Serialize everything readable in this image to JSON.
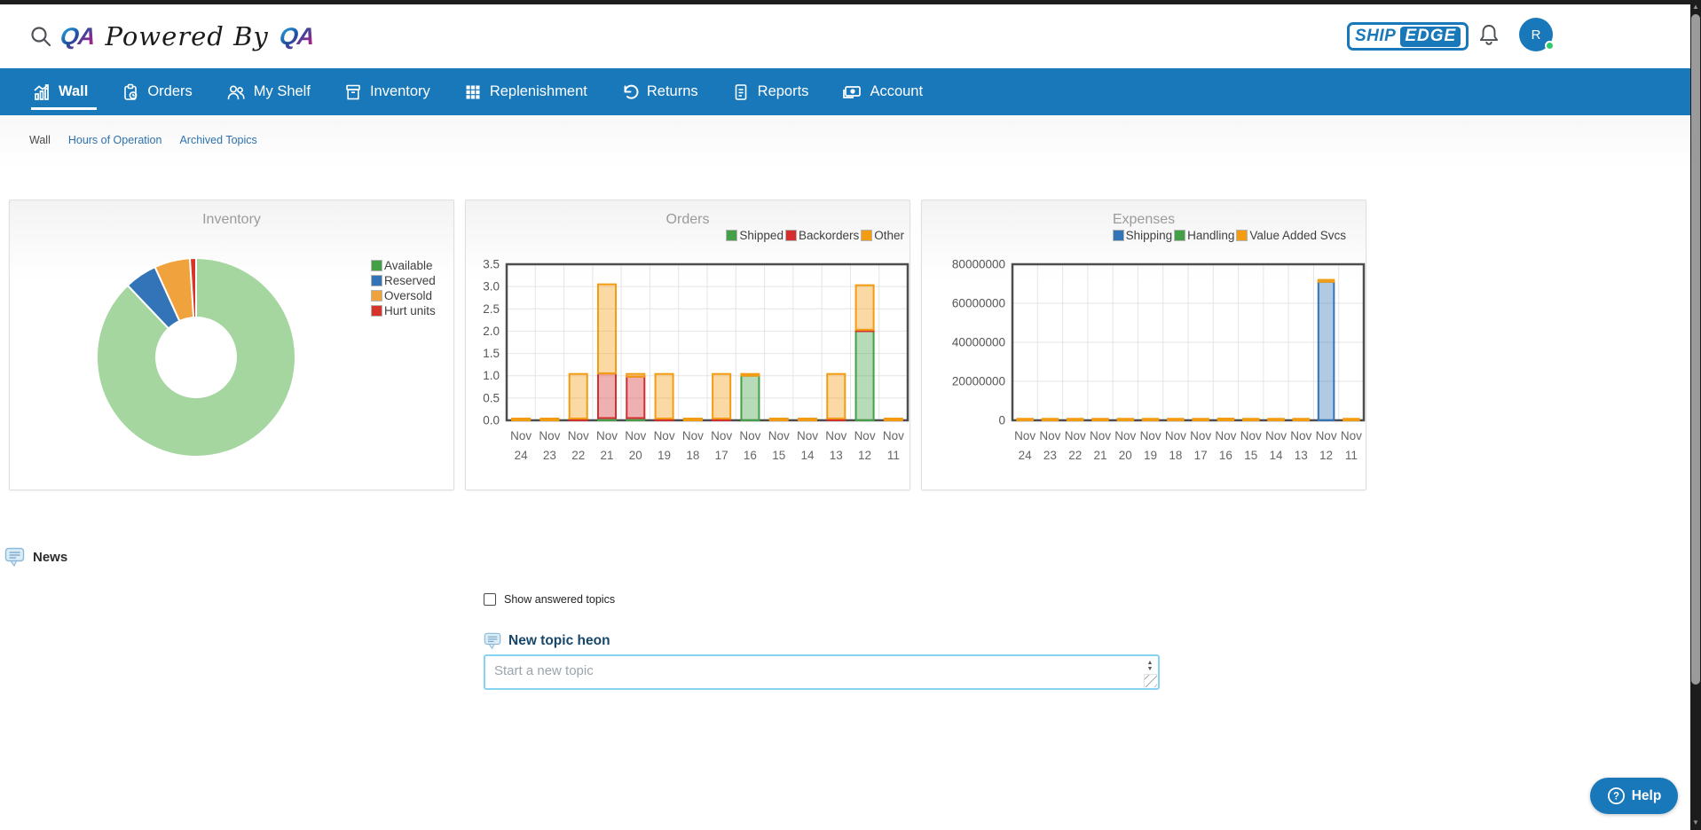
{
  "header": {
    "qa_logo_text": "QA",
    "powered_by": "Powered By",
    "shipedge_ship": "SHIP",
    "shipedge_edge": "EDGE",
    "avatar_initial": "R"
  },
  "nav": {
    "items": [
      {
        "label": "Wall",
        "active": true
      },
      {
        "label": "Orders",
        "active": false
      },
      {
        "label": "My Shelf",
        "active": false
      },
      {
        "label": "Inventory",
        "active": false
      },
      {
        "label": "Replenishment",
        "active": false
      },
      {
        "label": "Returns",
        "active": false
      },
      {
        "label": "Reports",
        "active": false
      },
      {
        "label": "Account",
        "active": false
      }
    ]
  },
  "breadcrumb": {
    "items": [
      "Wall",
      "Hours of Operation",
      "Archived Topics"
    ]
  },
  "news": {
    "title": "News",
    "show_answered_label": "Show answered topics",
    "new_topic_title": "New topic heon",
    "new_topic_placeholder": "Start a new topic"
  },
  "help": {
    "label": "Help"
  },
  "colors": {
    "brand_blue": "#1878b9",
    "green": "#43A047",
    "red": "#D32F2F",
    "orange": "#F39C12",
    "blue_series": "#3274B7",
    "grid": "#e4e4e4",
    "frame": "#4d4d4d"
  },
  "chart_data": [
    {
      "type": "pie",
      "title": "Inventory",
      "donut": true,
      "labels": [
        "Available",
        "Reserved",
        "Oversold",
        "Hurt units"
      ],
      "values": [
        87.9,
        5.3,
        5.8,
        1.0
      ],
      "slice_colors": [
        "#A5D6A0",
        "#3274B7",
        "#F0A33C",
        "#D7342A"
      ],
      "legend_colors": [
        "#43A047",
        "#3274B7",
        "#F0A33C",
        "#D7342A"
      ],
      "legend_position": "right"
    },
    {
      "type": "bar",
      "title": "Orders",
      "stacked": true,
      "grid": true,
      "legend_position": "top-right",
      "categories": [
        "Nov 24",
        "Nov 23",
        "Nov 22",
        "Nov 21",
        "Nov 20",
        "Nov 19",
        "Nov 18",
        "Nov 17",
        "Nov 16",
        "Nov 15",
        "Nov 14",
        "Nov 13",
        "Nov 12",
        "Nov 11"
      ],
      "series": [
        {
          "name": "Shipped",
          "color": "#43A047",
          "values": [
            0,
            0,
            0,
            0.05,
            0.05,
            0,
            0,
            0,
            1,
            0,
            0,
            0,
            2,
            0
          ]
        },
        {
          "name": "Backorders",
          "color": "#D32F2F",
          "values": [
            0,
            0,
            0.04,
            1,
            0.93,
            0.04,
            0,
            0.04,
            0,
            0,
            0,
            0.04,
            0.03,
            0
          ]
        },
        {
          "name": "Other",
          "color": "#F39C12",
          "values": [
            0.04,
            0.04,
            1,
            2,
            0.06,
            1,
            0.04,
            1,
            0.04,
            0.04,
            0.04,
            1,
            1,
            0.04
          ]
        }
      ],
      "ylim": [
        0,
        3.5
      ],
      "ytick_step": 0.5,
      "ytick_format": "decimal1"
    },
    {
      "type": "bar",
      "title": "Expenses",
      "stacked": true,
      "grid": true,
      "legend_position": "top-right",
      "categories": [
        "Nov 24",
        "Nov 23",
        "Nov 22",
        "Nov 21",
        "Nov 20",
        "Nov 19",
        "Nov 18",
        "Nov 17",
        "Nov 16",
        "Nov 15",
        "Nov 14",
        "Nov 13",
        "Nov 12",
        "Nov 11"
      ],
      "series": [
        {
          "name": "Shipping",
          "color": "#3274B7",
          "values": [
            0,
            0,
            0,
            0,
            0,
            0,
            0,
            0,
            0,
            0,
            0,
            0,
            71000000,
            0
          ]
        },
        {
          "name": "Handling",
          "color": "#43A047",
          "values": [
            0,
            0,
            0,
            0,
            0,
            0,
            0,
            0,
            0,
            0,
            0,
            0,
            0,
            0
          ]
        },
        {
          "name": "Value Added Svcs",
          "color": "#F39C12",
          "values": [
            800000,
            800000,
            800000,
            800000,
            800000,
            800000,
            800000,
            800000,
            900000,
            800000,
            800000,
            800000,
            1000000,
            800000
          ]
        }
      ],
      "ylim": [
        0,
        80000000
      ],
      "ytick_step": 20000000,
      "ytick_format": "plain"
    }
  ]
}
